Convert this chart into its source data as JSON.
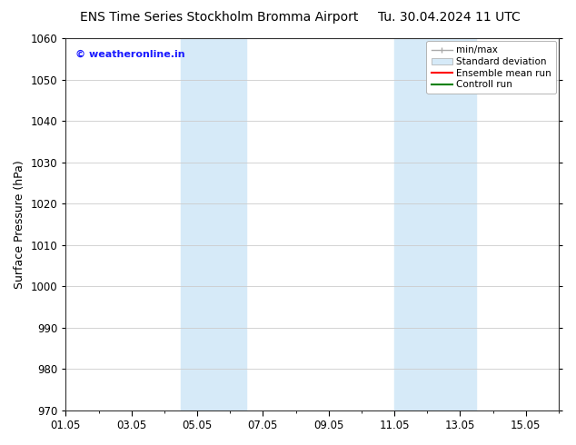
{
  "title_left": "ENS Time Series Stockholm Bromma Airport",
  "title_right": "Tu. 30.04.2024 11 UTC",
  "ylabel": "Surface Pressure (hPa)",
  "ylim": [
    970,
    1060
  ],
  "yticks": [
    970,
    980,
    990,
    1000,
    1010,
    1020,
    1030,
    1040,
    1050,
    1060
  ],
  "xtick_labels": [
    "01.05",
    "03.05",
    "05.05",
    "07.05",
    "09.05",
    "11.05",
    "13.05",
    "15.05"
  ],
  "xtick_positions": [
    0,
    2,
    4,
    6,
    8,
    10,
    12,
    14
  ],
  "xlim": [
    0,
    15
  ],
  "shaded_bands": [
    {
      "x_start": 3.5,
      "x_end": 5.5
    },
    {
      "x_start": 10.0,
      "x_end": 12.5
    }
  ],
  "shaded_color": "#d6eaf8",
  "watermark_text": "© weatheronline.in",
  "watermark_color": "#1a1aff",
  "legend_items": [
    {
      "label": "min/max",
      "color": "#aaaaaa",
      "lw": 1.0,
      "style": "solid"
    },
    {
      "label": "Standard deviation",
      "color": "#d6eaf8",
      "lw": 6,
      "style": "solid"
    },
    {
      "label": "Ensemble mean run",
      "color": "#ff0000",
      "lw": 1.5,
      "style": "solid"
    },
    {
      "label": "Controll run",
      "color": "#008000",
      "lw": 1.5,
      "style": "solid"
    }
  ],
  "bg_color": "#ffffff",
  "plot_bg_color": "#ffffff",
  "grid_color": "#cccccc",
  "title_fontsize": 10,
  "ylabel_fontsize": 9,
  "tick_fontsize": 8.5,
  "watermark_fontsize": 8,
  "legend_fontsize": 7.5
}
